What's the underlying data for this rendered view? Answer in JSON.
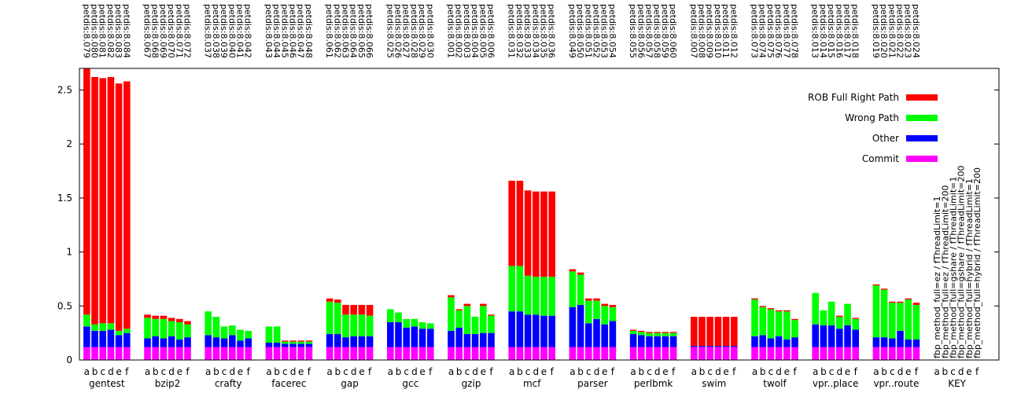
{
  "chart_data": {
    "type": "bar",
    "stacked": true,
    "title": "",
    "xlabel": "",
    "ylabel": "",
    "ylim": [
      0,
      2.7
    ],
    "yticks": [
      "0",
      "0.5",
      "1",
      "1.5",
      "2",
      "2.5"
    ],
    "ytick_values": [
      0,
      0.5,
      1,
      1.5,
      2,
      2.5
    ],
    "bar_letters": [
      "a",
      "b",
      "c",
      "d",
      "e",
      "f"
    ],
    "series": [
      {
        "name": "Commit",
        "color": "#ff00ff"
      },
      {
        "name": "Other",
        "color": "#0000ff"
      },
      {
        "name": "Wrong Path",
        "color": "#00ff00"
      },
      {
        "name": "ROB Full Right Path",
        "color": "#ff0000"
      }
    ],
    "groups": [
      {
        "name": "gentest",
        "runs": [
          "petdis:8.079",
          "petdis:8.080",
          "petdis:8.081",
          "petdis:8.082",
          "petdis:8.083",
          "petdis:8.084"
        ],
        "commit": [
          0.12,
          0.12,
          0.12,
          0.12,
          0.12,
          0.12
        ],
        "other": [
          0.19,
          0.15,
          0.15,
          0.16,
          0.11,
          0.13
        ],
        "wrong": [
          0.11,
          0.06,
          0.07,
          0.06,
          0.04,
          0.04
        ],
        "rob": [
          2.28,
          2.29,
          2.27,
          2.28,
          2.29,
          2.29
        ]
      },
      {
        "name": "bzip2",
        "runs": [
          "petdis:8.067",
          "petdis:8.068",
          "petdis:8.069",
          "petdis:8.070",
          "petdis:8.071",
          "petdis:8.072"
        ],
        "commit": [
          0.12,
          0.12,
          0.12,
          0.12,
          0.12,
          0.12
        ],
        "other": [
          0.08,
          0.1,
          0.08,
          0.1,
          0.07,
          0.09
        ],
        "wrong": [
          0.19,
          0.16,
          0.18,
          0.14,
          0.16,
          0.12
        ],
        "rob": [
          0.03,
          0.03,
          0.03,
          0.03,
          0.03,
          0.03
        ]
      },
      {
        "name": "crafty",
        "runs": [
          "petdis:8.037",
          "petdis:8.038",
          "petdis:8.039",
          "petdis:8.040",
          "petdis:8.041",
          "petdis:8.042"
        ],
        "commit": [
          0.12,
          0.12,
          0.12,
          0.12,
          0.12,
          0.12
        ],
        "other": [
          0.11,
          0.09,
          0.08,
          0.11,
          0.06,
          0.08
        ],
        "wrong": [
          0.22,
          0.19,
          0.11,
          0.09,
          0.1,
          0.07
        ],
        "rob": [
          0.0,
          0.0,
          0.0,
          0.0,
          0.0,
          0.0
        ]
      },
      {
        "name": "facerec",
        "runs": [
          "petdis:8.043",
          "petdis:8.044",
          "petdis:8.045",
          "petdis:8.046",
          "petdis:8.047",
          "petdis:8.048"
        ],
        "commit": [
          0.12,
          0.12,
          0.12,
          0.12,
          0.12,
          0.12
        ],
        "other": [
          0.04,
          0.04,
          0.03,
          0.03,
          0.03,
          0.03
        ],
        "wrong": [
          0.15,
          0.15,
          0.02,
          0.02,
          0.02,
          0.02
        ],
        "rob": [
          0.0,
          0.0,
          0.01,
          0.01,
          0.01,
          0.01
        ]
      },
      {
        "name": "gap",
        "runs": [
          "petdis:8.061",
          "petdis:8.062",
          "petdis:8.063",
          "petdis:8.064",
          "petdis:8.065",
          "petdis:8.066"
        ],
        "commit": [
          0.12,
          0.12,
          0.12,
          0.12,
          0.12,
          0.12
        ],
        "other": [
          0.12,
          0.12,
          0.09,
          0.1,
          0.1,
          0.1
        ],
        "wrong": [
          0.3,
          0.29,
          0.21,
          0.2,
          0.2,
          0.19
        ],
        "rob": [
          0.03,
          0.03,
          0.09,
          0.09,
          0.09,
          0.1
        ]
      },
      {
        "name": "gcc",
        "runs": [
          "petdis:8.025",
          "petdis:8.026",
          "petdis:8.027",
          "petdis:8.028",
          "petdis:8.029",
          "petdis:8.030"
        ],
        "commit": [
          0.12,
          0.12,
          0.12,
          0.12,
          0.12,
          0.12
        ],
        "other": [
          0.23,
          0.23,
          0.18,
          0.19,
          0.17,
          0.17
        ],
        "wrong": [
          0.12,
          0.09,
          0.08,
          0.07,
          0.06,
          0.05
        ],
        "rob": [
          0.0,
          0.0,
          0.0,
          0.0,
          0.0,
          0.0
        ]
      },
      {
        "name": "gzip",
        "runs": [
          "petdis:8.001",
          "petdis:8.002",
          "petdis:8.003",
          "petdis:8.004",
          "petdis:8.005",
          "petdis:8.006"
        ],
        "commit": [
          0.12,
          0.12,
          0.12,
          0.12,
          0.12,
          0.12
        ],
        "other": [
          0.15,
          0.18,
          0.12,
          0.12,
          0.13,
          0.13
        ],
        "wrong": [
          0.31,
          0.16,
          0.26,
          0.16,
          0.25,
          0.16
        ],
        "rob": [
          0.02,
          0.01,
          0.02,
          0.0,
          0.02,
          0.01
        ]
      },
      {
        "name": "mcf",
        "runs": [
          "petdis:8.031",
          "petdis:8.032",
          "petdis:8.033",
          "petdis:8.034",
          "petdis:8.035",
          "petdis:8.036"
        ],
        "commit": [
          0.12,
          0.12,
          0.12,
          0.12,
          0.12,
          0.12
        ],
        "other": [
          0.33,
          0.33,
          0.3,
          0.3,
          0.29,
          0.29
        ],
        "wrong": [
          0.42,
          0.42,
          0.36,
          0.35,
          0.36,
          0.36
        ],
        "rob": [
          0.79,
          0.79,
          0.79,
          0.79,
          0.79,
          0.79
        ]
      },
      {
        "name": "parser",
        "runs": [
          "petdis:8.049",
          "petdis:8.050",
          "petdis:8.051",
          "petdis:8.052",
          "petdis:8.053",
          "petdis:8.054"
        ],
        "commit": [
          0.12,
          0.12,
          0.12,
          0.12,
          0.12,
          0.12
        ],
        "other": [
          0.37,
          0.39,
          0.22,
          0.26,
          0.21,
          0.24
        ],
        "wrong": [
          0.33,
          0.28,
          0.21,
          0.17,
          0.17,
          0.13
        ],
        "rob": [
          0.02,
          0.02,
          0.02,
          0.02,
          0.02,
          0.02
        ]
      },
      {
        "name": "perlbmk",
        "runs": [
          "petdis:8.055",
          "petdis:8.056",
          "petdis:8.057",
          "petdis:8.058",
          "petdis:8.059",
          "petdis:8.060"
        ],
        "commit": [
          0.12,
          0.12,
          0.12,
          0.12,
          0.12,
          0.12
        ],
        "other": [
          0.12,
          0.11,
          0.1,
          0.1,
          0.1,
          0.1
        ],
        "wrong": [
          0.03,
          0.03,
          0.03,
          0.03,
          0.03,
          0.03
        ],
        "rob": [
          0.01,
          0.01,
          0.01,
          0.01,
          0.01,
          0.01
        ]
      },
      {
        "name": "swim",
        "runs": [
          "petdis:8.007",
          "petdis:8.008",
          "petdis:8.009",
          "petdis:8.010",
          "petdis:8.011",
          "petdis:8.012"
        ],
        "commit": [
          0.12,
          0.12,
          0.12,
          0.12,
          0.12,
          0.12
        ],
        "other": [
          0.01,
          0.01,
          0.01,
          0.01,
          0.01,
          0.01
        ],
        "wrong": [
          0.0,
          0.0,
          0.0,
          0.0,
          0.0,
          0.0
        ],
        "rob": [
          0.27,
          0.27,
          0.27,
          0.27,
          0.27,
          0.27
        ]
      },
      {
        "name": "twolf",
        "runs": [
          "petdis:8.073",
          "petdis:8.074",
          "petdis:8.075",
          "petdis:8.076",
          "petdis:8.077",
          "petdis:8.078"
        ],
        "commit": [
          0.12,
          0.12,
          0.12,
          0.12,
          0.12,
          0.12
        ],
        "other": [
          0.1,
          0.11,
          0.08,
          0.1,
          0.07,
          0.09
        ],
        "wrong": [
          0.34,
          0.26,
          0.27,
          0.23,
          0.26,
          0.16
        ],
        "rob": [
          0.01,
          0.01,
          0.01,
          0.01,
          0.01,
          0.01
        ]
      },
      {
        "name": "vpr..place",
        "runs": [
          "petdis:8.013",
          "petdis:8.014",
          "petdis:8.015",
          "petdis:8.016",
          "petdis:8.017",
          "petdis:8.018"
        ],
        "commit": [
          0.12,
          0.12,
          0.12,
          0.12,
          0.12,
          0.12
        ],
        "other": [
          0.21,
          0.2,
          0.2,
          0.17,
          0.2,
          0.16
        ],
        "wrong": [
          0.29,
          0.14,
          0.22,
          0.11,
          0.2,
          0.1
        ],
        "rob": [
          0.0,
          0.0,
          0.0,
          0.01,
          0.0,
          0.01
        ]
      },
      {
        "name": "vpr..route",
        "runs": [
          "petdis:8.019",
          "petdis:8.020",
          "petdis:8.021",
          "petdis:8.022",
          "petdis:8.023",
          "petdis:8.024"
        ],
        "commit": [
          0.12,
          0.12,
          0.12,
          0.12,
          0.12,
          0.12
        ],
        "other": [
          0.09,
          0.09,
          0.08,
          0.15,
          0.07,
          0.07
        ],
        "wrong": [
          0.48,
          0.44,
          0.33,
          0.26,
          0.37,
          0.32
        ],
        "rob": [
          0.01,
          0.01,
          0.01,
          0.01,
          0.01,
          0.02
        ]
      }
    ],
    "key": {
      "name": "KEY",
      "lines": [
        "fbp_method_full=ez / fThreadLimit=1",
        "fbp_method_full=ez / fThreadLimit=200",
        "fbp_method_full=gshare / fThreadLimit=1",
        "fbp_method_full=gshare / fThreadLimit=200",
        "fbp_method_full=hybrid / fThreadLimit=1",
        "fbp_method_full=hybrid / fThreadLimit=200"
      ]
    },
    "legend_position": "top-right",
    "grid": false
  }
}
